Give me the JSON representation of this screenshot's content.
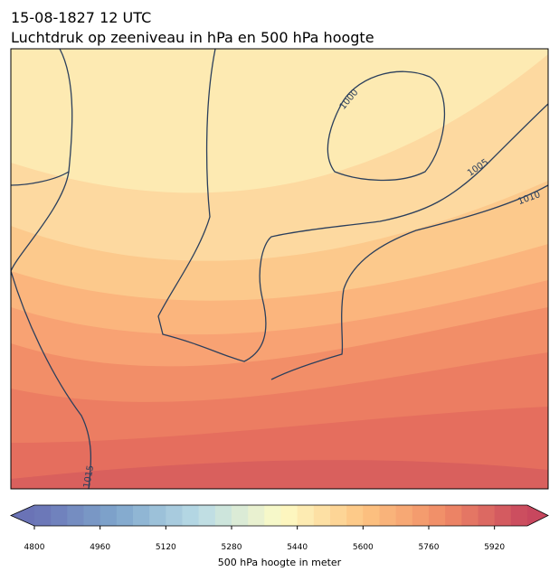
{
  "header": {
    "date": "15-08-1827 12 UTC",
    "title": "Luchtdruk op zeeniveau in hPa en 500 hPa hoogte"
  },
  "contours": {
    "labels": [
      "1000",
      "1005",
      "1010",
      "1015"
    ]
  },
  "colorbar": {
    "label": "500 hPa hoogte in meter",
    "lim": [
      4800,
      6000
    ],
    "step": 40,
    "ticks": [
      4800,
      4960,
      5120,
      5280,
      5440,
      5600,
      5760,
      5920
    ],
    "colors": [
      "#6a73b6",
      "#7fa6cc",
      "#b9dbe6",
      "#fdfbc6",
      "#fdc582",
      "#f08a66",
      "#c8475e"
    ]
  }
}
